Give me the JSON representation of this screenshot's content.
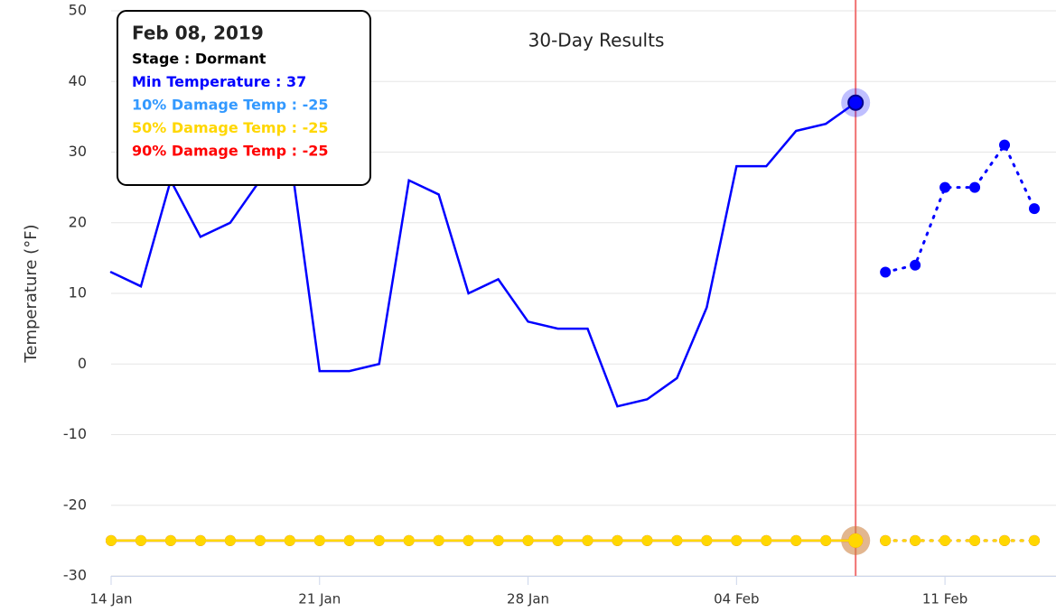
{
  "chart_data": {
    "type": "line",
    "title": "30-Day Results",
    "y_label": "Temperature (°F)",
    "x": [
      "2019-01-14",
      "2019-01-15",
      "2019-01-16",
      "2019-01-17",
      "2019-01-18",
      "2019-01-19",
      "2019-01-20",
      "2019-01-21",
      "2019-01-22",
      "2019-01-23",
      "2019-01-24",
      "2019-01-25",
      "2019-01-26",
      "2019-01-27",
      "2019-01-28",
      "2019-01-29",
      "2019-01-30",
      "2019-01-31",
      "2019-02-01",
      "2019-02-02",
      "2019-02-03",
      "2019-02-04",
      "2019-02-05",
      "2019-02-06",
      "2019-02-07",
      "2019-02-08",
      "2019-02-09",
      "2019-02-10",
      "2019-02-11",
      "2019-02-12",
      "2019-02-13",
      "2019-02-14"
    ],
    "xlim": [
      "2019-01-14",
      "2019-02-14"
    ],
    "xticks": [
      {
        "value": "2019-01-14",
        "label": "14 Jan"
      },
      {
        "value": "2019-01-21",
        "label": "21 Jan"
      },
      {
        "value": "2019-01-28",
        "label": "28 Jan"
      },
      {
        "value": "2019-02-04",
        "label": "04 Feb"
      },
      {
        "value": "2019-02-11",
        "label": "11 Feb"
      }
    ],
    "ylim": [
      -30,
      50
    ],
    "yticks": [
      -30,
      -20,
      -10,
      0,
      10,
      20,
      30,
      40,
      50
    ],
    "grid": true,
    "plot_line_x": "2019-02-08",
    "plot_line_color": "#f07070",
    "series": [
      {
        "name": "10% Damage Temp",
        "color": "#3399ff",
        "markers": true,
        "values": [
          -25,
          -25,
          -25,
          -25,
          -25,
          -25,
          -25,
          -25,
          -25,
          -25,
          -25,
          -25,
          -25,
          -25,
          -25,
          -25,
          -25,
          -25,
          -25,
          -25,
          -25,
          -25,
          -25,
          -25,
          -25,
          -25,
          -25,
          -25,
          -25,
          -25,
          -25,
          -25
        ]
      },
      {
        "name": "90% Damage Temp",
        "color": "#ff0000",
        "markers": true,
        "values": [
          -25,
          -25,
          -25,
          -25,
          -25,
          -25,
          -25,
          -25,
          -25,
          -25,
          -25,
          -25,
          -25,
          -25,
          -25,
          -25,
          -25,
          -25,
          -25,
          -25,
          -25,
          -25,
          -25,
          -25,
          -25,
          -25,
          -25,
          -25,
          -25,
          -25,
          -25,
          -25
        ]
      },
      {
        "name": "50% Damage Temp",
        "color": "#ffd700",
        "markers": true,
        "values": [
          -25,
          -25,
          -25,
          -25,
          -25,
          -25,
          -25,
          -25,
          -25,
          -25,
          -25,
          -25,
          -25,
          -25,
          -25,
          -25,
          -25,
          -25,
          -25,
          -25,
          -25,
          -25,
          -25,
          -25,
          -25,
          -25,
          -25,
          -25,
          -25,
          -25,
          -25,
          -25
        ]
      },
      {
        "name": "Min Temperature",
        "color": "#0000ff",
        "markers": false,
        "values": [
          13,
          11,
          26,
          18,
          20,
          26,
          30,
          -1,
          -1,
          0,
          26,
          24,
          10,
          12,
          6,
          5,
          5,
          -6,
          -5,
          -2,
          8,
          28,
          28,
          33,
          34,
          37,
          13,
          14,
          25,
          25,
          31,
          22
        ]
      }
    ],
    "tooltip": {
      "x": "2019-02-08",
      "title": "Feb 08, 2019",
      "lines": [
        {
          "text": "Stage : Dormant",
          "color": "#000000"
        },
        {
          "text": "Min Temperature : 37",
          "color": "#0000ff"
        },
        {
          "text": "10% Damage Temp : -25",
          "color": "#3399ff"
        },
        {
          "text": "50% Damage Temp : -25",
          "color": "#ffd700"
        },
        {
          "text": "90% Damage Temp : -25",
          "color": "#ff0000"
        }
      ]
    }
  }
}
